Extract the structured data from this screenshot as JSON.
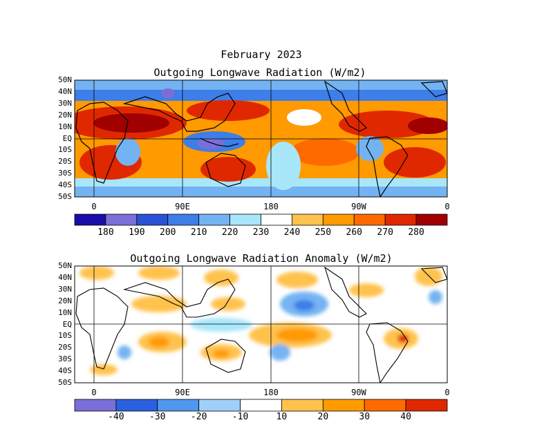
{
  "header": {
    "month_title": "February 2023"
  },
  "chart_data": [
    {
      "type": "heatmap",
      "title": "Outgoing Longwave Radiation (W/m2)",
      "y_ticks": [
        "50N",
        "40N",
        "30N",
        "20N",
        "10N",
        "EQ",
        "10S",
        "20S",
        "30S",
        "40S",
        "50S"
      ],
      "x_ticks": [
        "0",
        "90E",
        "180",
        "90W",
        "0"
      ],
      "colorbar": {
        "labels": [
          "180",
          "190",
          "200",
          "210",
          "220",
          "230",
          "240",
          "250",
          "260",
          "270",
          "280"
        ],
        "colors": [
          "#1a0ca8",
          "#7a6fd8",
          "#2a52d4",
          "#3d7ee8",
          "#74b3f2",
          "#a8e6fa",
          "#ffffff",
          "#ffc24d",
          "#ff9a00",
          "#ff6a00",
          "#e02800",
          "#a00000"
        ]
      }
    },
    {
      "type": "heatmap",
      "title": "Outgoing Longwave Radiation Anomaly (W/m2)",
      "y_ticks": [
        "50N",
        "40N",
        "30N",
        "20N",
        "10N",
        "EQ",
        "10S",
        "20S",
        "30S",
        "40S",
        "50S"
      ],
      "x_ticks": [
        "0",
        "90E",
        "180",
        "90W",
        "0"
      ],
      "colorbar": {
        "labels": [
          "-40",
          "-30",
          "-20",
          "-10",
          "10",
          "20",
          "30",
          "40"
        ],
        "colors": [
          "#7a6fd8",
          "#2a60e0",
          "#5097f0",
          "#a0d0f8",
          "#ffffff",
          "#ffc24d",
          "#ff9a00",
          "#ff6a00",
          "#e02800"
        ]
      }
    }
  ]
}
